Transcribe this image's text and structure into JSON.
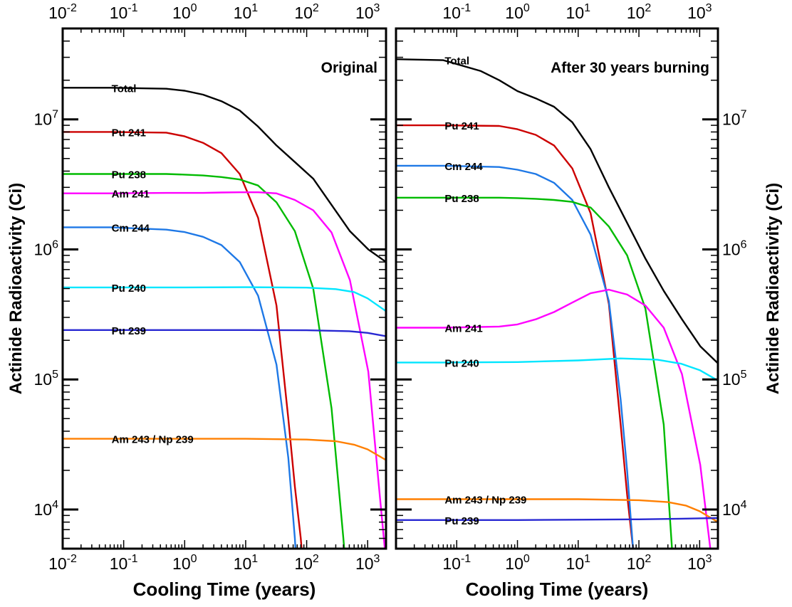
{
  "chart_data": [
    {
      "type": "line",
      "title": "Original",
      "xlabel": "Cooling Time (years)",
      "ylabel": "Actinide Radioactivity (Ci)",
      "xscale": "log",
      "yscale": "log",
      "xlim": [
        0.01,
        2000
      ],
      "ylim": [
        5000,
        50000000
      ],
      "x_ticks": [
        {
          "value": 0.01,
          "base": "10",
          "exp": "-2"
        },
        {
          "value": 0.1,
          "base": "10",
          "exp": "-1"
        },
        {
          "value": 1,
          "base": "10",
          "exp": "0"
        },
        {
          "value": 10,
          "base": "10",
          "exp": "1"
        },
        {
          "value": 100,
          "base": "10",
          "exp": "2"
        },
        {
          "value": 1000,
          "base": "10",
          "exp": "3"
        }
      ],
      "y_ticks": [
        {
          "value": 10000,
          "base": "10",
          "exp": "4"
        },
        {
          "value": 100000,
          "base": "10",
          "exp": "5"
        },
        {
          "value": 1000000,
          "base": "10",
          "exp": "6"
        },
        {
          "value": 10000000,
          "base": "10",
          "exp": "7"
        }
      ],
      "series": [
        {
          "name": "Total",
          "color": "#000000",
          "label_x": 0.06,
          "points": [
            [
              0.01,
              17500000.0
            ],
            [
              0.06,
              17500000.0
            ],
            [
              0.5,
              17200000.0
            ],
            [
              1,
              16600000.0
            ],
            [
              2,
              15500000.0
            ],
            [
              4,
              13800000.0
            ],
            [
              8,
              11700000.0
            ],
            [
              16,
              8800000.0
            ],
            [
              32,
              6300000.0
            ],
            [
              64,
              4700000.0
            ],
            [
              128,
              3500000.0
            ],
            [
              256,
              2200000.0
            ],
            [
              512,
              1380000.0
            ],
            [
              1024,
              1000000.0
            ],
            [
              2000,
              800000.0
            ]
          ]
        },
        {
          "name": "Pu 241",
          "color": "#cc0000",
          "label_x": 0.06,
          "points": [
            [
              0.01,
              8000000.0
            ],
            [
              0.06,
              8000000.0
            ],
            [
              0.5,
              7900000.0
            ],
            [
              1,
              7400000.0
            ],
            [
              2,
              6600000.0
            ],
            [
              4,
              5500000.0
            ],
            [
              8,
              3800000.0
            ],
            [
              16,
              1750000.0
            ],
            [
              32,
              370000.0
            ],
            [
              50,
              50000.0
            ],
            [
              64,
              15000.0
            ],
            [
              80,
              6000.0
            ],
            [
              90,
              3000.0
            ]
          ]
        },
        {
          "name": "Pu 238",
          "color": "#00bb00",
          "label_x": 0.06,
          "points": [
            [
              0.01,
              3800000.0
            ],
            [
              0.06,
              3800000.0
            ],
            [
              0.5,
              3800000.0
            ],
            [
              1,
              3760000.0
            ],
            [
              2,
              3700000.0
            ],
            [
              4,
              3600000.0
            ],
            [
              8,
              3450000.0
            ],
            [
              16,
              3100000.0
            ],
            [
              32,
              2300000.0
            ],
            [
              64,
              1380000.0
            ],
            [
              128,
              500000.0
            ],
            [
              256,
              60000.0
            ],
            [
              400,
              6000.0
            ],
            [
              450,
              3000.0
            ]
          ]
        },
        {
          "name": "Am 241",
          "color": "#ff00ff",
          "label_x": 0.06,
          "points": [
            [
              0.01,
              2700000.0
            ],
            [
              0.06,
              2700000.0
            ],
            [
              0.5,
              2720000.0
            ],
            [
              1,
              2720000.0
            ],
            [
              2,
              2720000.0
            ],
            [
              4,
              2740000.0
            ],
            [
              8,
              2750000.0
            ],
            [
              16,
              2750000.0
            ],
            [
              32,
              2700000.0
            ],
            [
              64,
              2400000.0
            ],
            [
              128,
              2000000.0
            ],
            [
              256,
              1350000.0
            ],
            [
              512,
              580000.0
            ],
            [
              1024,
              115000.0
            ],
            [
              1600,
              12000.0
            ],
            [
              2000,
              4000.0
            ]
          ]
        },
        {
          "name": "Cm 244",
          "color": "#1e78e6",
          "label_x": 0.06,
          "points": [
            [
              0.01,
              1480000.0
            ],
            [
              0.06,
              1480000.0
            ],
            [
              0.5,
              1420000.0
            ],
            [
              1,
              1360000.0
            ],
            [
              2,
              1250000.0
            ],
            [
              4,
              1080000.0
            ],
            [
              8,
              800000.0
            ],
            [
              16,
              440000.0
            ],
            [
              32,
              130000.0
            ],
            [
              50,
              25000.0
            ],
            [
              64,
              6000.0
            ],
            [
              70,
              3000.0
            ]
          ]
        },
        {
          "name": "Pu 240",
          "color": "#00e6ff",
          "label_x": 0.06,
          "points": [
            [
              0.01,
              510000.0
            ],
            [
              0.06,
              510000.0
            ],
            [
              1,
              510000.0
            ],
            [
              10,
              512000.0
            ],
            [
              100,
              508000.0
            ],
            [
              300,
              495000.0
            ],
            [
              600,
              470000.0
            ],
            [
              1000,
              420000.0
            ],
            [
              2000,
              335000.0
            ]
          ]
        },
        {
          "name": "Pu 239",
          "color": "#2828d2",
          "label_x": 0.06,
          "points": [
            [
              0.01,
              240000.0
            ],
            [
              0.06,
              240000.0
            ],
            [
              1,
              240000.0
            ],
            [
              10,
              240000.0
            ],
            [
              100,
              239000.0
            ],
            [
              500,
              235000.0
            ],
            [
              1000,
              228000.0
            ],
            [
              2000,
              215000.0
            ]
          ]
        },
        {
          "name": "Am 243 / Np 239",
          "color": "#ff7f00",
          "label_x": 0.06,
          "points": [
            [
              0.01,
              35000.0
            ],
            [
              0.06,
              35000.0
            ],
            [
              1,
              35000.0
            ],
            [
              10,
              35000.0
            ],
            [
              100,
              34500.0
            ],
            [
              300,
              33500.0
            ],
            [
              600,
              31500.0
            ],
            [
              1000,
              29000.0
            ],
            [
              2000,
              24000.0
            ]
          ]
        }
      ]
    },
    {
      "type": "line",
      "title": "After 30 years burning",
      "xlabel": "Cooling Time (years)",
      "ylabel": "Actinide Radioactivity (Ci)",
      "xscale": "log",
      "yscale": "log",
      "xlim": [
        0.01,
        2000
      ],
      "ylim": [
        5000,
        50000000
      ],
      "x_ticks": [
        {
          "value": 0.1,
          "base": "10",
          "exp": "-1"
        },
        {
          "value": 1,
          "base": "10",
          "exp": "0"
        },
        {
          "value": 10,
          "base": "10",
          "exp": "1"
        },
        {
          "value": 100,
          "base": "10",
          "exp": "2"
        },
        {
          "value": 1000,
          "base": "10",
          "exp": "3"
        }
      ],
      "y_ticks": [
        {
          "value": 10000,
          "base": "10",
          "exp": "4"
        },
        {
          "value": 100000,
          "base": "10",
          "exp": "5"
        },
        {
          "value": 1000000,
          "base": "10",
          "exp": "6"
        },
        {
          "value": 10000000,
          "base": "10",
          "exp": "7"
        }
      ],
      "series": [
        {
          "name": "Total",
          "color": "#000000",
          "label_x": 0.06,
          "points": [
            [
              0.01,
              29000000.0
            ],
            [
              0.06,
              28500000.0
            ],
            [
              0.25,
              23500000.0
            ],
            [
              0.5,
              20000000.0
            ],
            [
              1,
              16500000.0
            ],
            [
              2,
              14500000.0
            ],
            [
              4,
              12500000.0
            ],
            [
              8,
              9500000.0
            ],
            [
              16,
              5900000.0
            ],
            [
              32,
              3000000.0
            ],
            [
              64,
              1600000.0
            ],
            [
              128,
              850000.0
            ],
            [
              256,
              480000.0
            ],
            [
              512,
              290000.0
            ],
            [
              1024,
              180000.0
            ],
            [
              2000,
              133000.0
            ]
          ]
        },
        {
          "name": "Pu 241",
          "color": "#cc0000",
          "label_x": 0.06,
          "points": [
            [
              0.01,
              9000000.0
            ],
            [
              0.06,
              9000000.0
            ],
            [
              0.5,
              8900000.0
            ],
            [
              1,
              8400000.0
            ],
            [
              2,
              7600000.0
            ],
            [
              4,
              6300000.0
            ],
            [
              8,
              4200000.0
            ],
            [
              16,
              1900000.0
            ],
            [
              32,
              380000.0
            ],
            [
              50,
              45000.0
            ],
            [
              64,
              13000.0
            ],
            [
              80,
              5000.0
            ],
            [
              90,
              3000.0
            ]
          ]
        },
        {
          "name": "Cm 244",
          "color": "#1e78e6",
          "label_x": 0.06,
          "points": [
            [
              0.01,
              4400000.0
            ],
            [
              0.06,
              4400000.0
            ],
            [
              0.5,
              4300000.0
            ],
            [
              1,
              4100000.0
            ],
            [
              2,
              3800000.0
            ],
            [
              4,
              3250000.0
            ],
            [
              8,
              2400000.0
            ],
            [
              16,
              1300000.0
            ],
            [
              32,
              400000.0
            ],
            [
              50,
              70000.0
            ],
            [
              64,
              20000.0
            ],
            [
              80,
              5000.0
            ],
            [
              90,
              3000.0
            ]
          ]
        },
        {
          "name": "Pu 238",
          "color": "#00bb00",
          "label_x": 0.06,
          "points": [
            [
              0.01,
              2500000.0
            ],
            [
              0.06,
              2500000.0
            ],
            [
              0.5,
              2500000.0
            ],
            [
              1,
              2480000.0
            ],
            [
              2,
              2450000.0
            ],
            [
              4,
              2400000.0
            ],
            [
              8,
              2320000.0
            ],
            [
              16,
              2100000.0
            ],
            [
              32,
              1500000.0
            ],
            [
              64,
              900000.0
            ],
            [
              128,
              350000.0
            ],
            [
              256,
              45000.0
            ],
            [
              350,
              5000.0
            ],
            [
              400,
              3000.0
            ]
          ]
        },
        {
          "name": "Am 241",
          "color": "#ff00ff",
          "label_x": 0.06,
          "points": [
            [
              0.01,
              250000.0
            ],
            [
              0.06,
              250000.0
            ],
            [
              0.5,
              255000.0
            ],
            [
              1,
              265000.0
            ],
            [
              2,
              290000.0
            ],
            [
              4,
              330000.0
            ],
            [
              8,
              390000.0
            ],
            [
              16,
              460000.0
            ],
            [
              32,
              490000.0
            ],
            [
              64,
              450000.0
            ],
            [
              128,
              370000.0
            ],
            [
              256,
              250000.0
            ],
            [
              512,
              110000.0
            ],
            [
              1024,
              22000.0
            ],
            [
              1500,
              5000.0
            ],
            [
              1700,
              3000.0
            ]
          ]
        },
        {
          "name": "Pu 240",
          "color": "#00e6ff",
          "label_x": 0.06,
          "points": [
            [
              0.01,
              135000.0
            ],
            [
              0.06,
              135000.0
            ],
            [
              1,
              136000.0
            ],
            [
              10,
              140000.0
            ],
            [
              50,
              145000.0
            ],
            [
              200,
              142000.0
            ],
            [
              500,
              132000.0
            ],
            [
              1000,
              118000.0
            ],
            [
              2000,
              98000.0
            ]
          ]
        },
        {
          "name": "Am 243 / Np 239",
          "color": "#ff7f00",
          "label_x": 0.06,
          "points": [
            [
              0.01,
              12000.0
            ],
            [
              0.06,
              12000.0
            ],
            [
              1,
              12000.0
            ],
            [
              10,
              12000.0
            ],
            [
              100,
              11800.0
            ],
            [
              300,
              11400.0
            ],
            [
              600,
              10700.0
            ],
            [
              1000,
              9700.0
            ],
            [
              2000,
              8000.0
            ]
          ]
        },
        {
          "name": "Pu 239",
          "color": "#2828d2",
          "label_x": 0.06,
          "points": [
            [
              0.01,
              8300.0
            ],
            [
              0.06,
              8300.0
            ],
            [
              1,
              8300.0
            ],
            [
              10,
              8350.0
            ],
            [
              100,
              8400.0
            ],
            [
              500,
              8500.0
            ],
            [
              1000,
              8550.0
            ],
            [
              2000,
              8600.0
            ]
          ]
        }
      ]
    }
  ]
}
